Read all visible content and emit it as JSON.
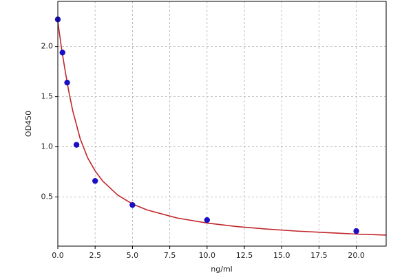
{
  "chart_data": {
    "type": "scatter",
    "x_label": "ng/ml",
    "y_label": "OD450",
    "series": [
      {
        "kind": "points",
        "color": "#1a0fc2",
        "x": [
          0,
          0.312,
          0.625,
          1.25,
          2.5,
          5,
          10,
          20
        ],
        "values": [
          2.27,
          1.94,
          1.64,
          1.02,
          0.66,
          0.42,
          0.27,
          0.16
        ]
      },
      {
        "kind": "curve",
        "color": "#c0262b",
        "x": [
          0,
          0.25,
          0.5,
          0.75,
          1,
          1.5,
          2,
          2.5,
          3,
          4,
          5,
          6,
          8,
          10,
          12,
          14,
          16,
          18,
          20,
          22
        ],
        "values": [
          2.25,
          1.98,
          1.75,
          1.54,
          1.36,
          1.08,
          0.89,
          0.76,
          0.66,
          0.52,
          0.43,
          0.37,
          0.29,
          0.24,
          0.205,
          0.18,
          0.16,
          0.145,
          0.13,
          0.12
        ]
      }
    ],
    "xlim": [
      0,
      22
    ],
    "ylim": [
      0.01,
      2.45
    ],
    "xticks": [
      {
        "value": 0,
        "label": "0.0"
      },
      2.5,
      {
        "value": 5,
        "label": "5.0"
      },
      7.5,
      {
        "value": 10,
        "label": "10.0"
      },
      12.5,
      {
        "value": 15,
        "label": "15.0"
      },
      17.5,
      {
        "value": 20,
        "label": "20.0"
      }
    ],
    "yticks": [
      0.5,
      {
        "value": 1,
        "label": "1.0"
      },
      1.5,
      {
        "value": 2,
        "label": "2.0"
      }
    ],
    "grid": true
  }
}
